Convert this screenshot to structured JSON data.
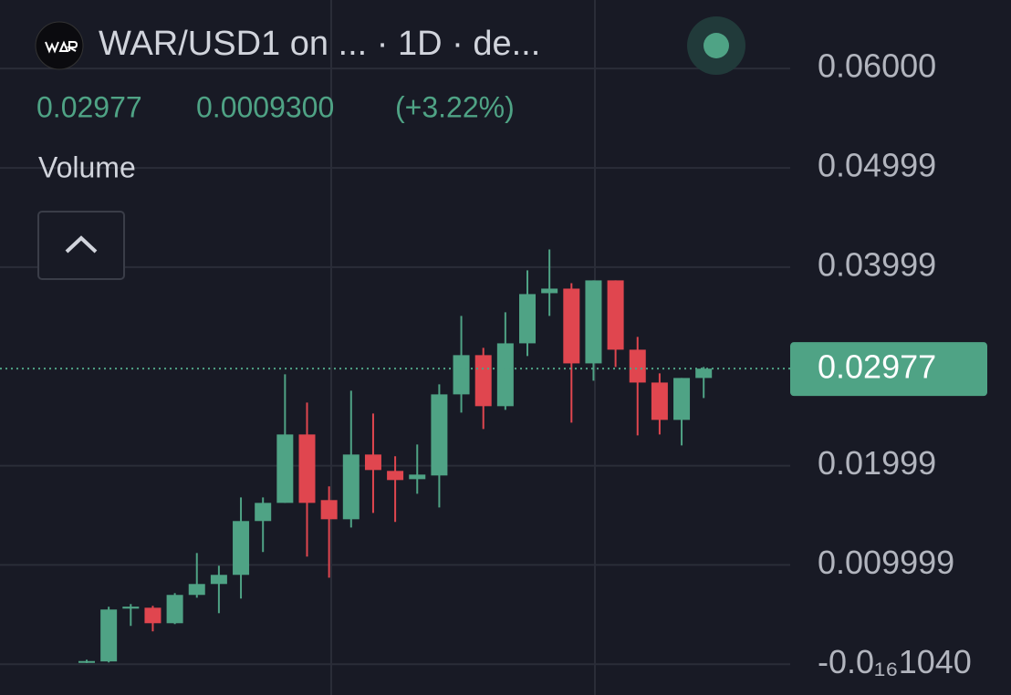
{
  "chart_data": {
    "type": "candlestick",
    "title": "WAR/USD1 on ... · 1D · de...",
    "last_price": 0.02977,
    "change": "0.0009300",
    "change_pct": "(+3.22%)",
    "indicator": "Volume",
    "up_color": "#4fa385",
    "down_color": "#e0464f",
    "categories": [
      null,
      null,
      null,
      null,
      null,
      null,
      null,
      null,
      null,
      null,
      null,
      null,
      null,
      null,
      null,
      null,
      null,
      null,
      null,
      null,
      null,
      null,
      null,
      null,
      null,
      null,
      null,
      null,
      null
    ],
    "open": [
      0.0003,
      0.00028,
      0.0056,
      0.00569,
      0.00413,
      0.00698,
      0.00808,
      0.009,
      0.01442,
      0.01625,
      0.02314,
      0.01653,
      0.0146,
      0.02112,
      0.01947,
      0.01864,
      0.01901,
      0.02718,
      0.03113,
      0.02599,
      0.03232,
      0.03737,
      0.03783,
      0.0303,
      0.03866,
      0.03168,
      0.02837,
      0.02461,
      0.02883
    ],
    "high": [
      0.00045,
      0.00579,
      0.00606,
      0.00588,
      0.00716,
      0.0112,
      0.00992,
      0.0168,
      0.0168,
      0.0292,
      0.02635,
      0.01791,
      0.02755,
      0.02525,
      0.02094,
      0.02213,
      0.02819,
      0.03508,
      0.03186,
      0.03545,
      0.03967,
      0.04178,
      0.03838,
      0.03866,
      0.03866,
      0.03297,
      0.02929,
      0.02883,
      0.02994
    ],
    "low": [
      0.00012,
      0.00018,
      0.00386,
      0.00331,
      0.00404,
      0.0067,
      0.00514,
      0.00661,
      0.0113,
      0.01625,
      0.01084,
      0.00872,
      0.01377,
      0.01524,
      0.01433,
      0.01717,
      0.01579,
      0.02534,
      0.02369,
      0.02562,
      0.03104,
      0.03508,
      0.02433,
      0.02856,
      0.02994,
      0.02305,
      0.02314,
      0.02204,
      0.02681
    ],
    "close": [
      0.00032,
      0.00551,
      0.0058,
      0.00413,
      0.00698,
      0.00808,
      0.009,
      0.01442,
      0.01625,
      0.02314,
      0.01625,
      0.0146,
      0.02112,
      0.01956,
      0.01855,
      0.0191,
      0.02718,
      0.03113,
      0.02599,
      0.03232,
      0.03728,
      0.03783,
      0.0303,
      0.03866,
      0.03168,
      0.02837,
      0.02461,
      0.02883,
      0.02977
    ],
    "ylim": [
      -0.0031,
      0.0669
    ],
    "yticks": [
      {
        "value": 0.06,
        "label": "0.06000"
      },
      {
        "value": 0.04999,
        "label": "0.04999"
      },
      {
        "value": 0.03999,
        "label": "0.03999"
      },
      {
        "value": 0.01999,
        "label": "0.01999"
      },
      {
        "value": 0.009999,
        "label": "0.009999"
      },
      {
        "value": -1.04e-20,
        "label": "-0.0₁₆1040"
      }
    ],
    "grid": true
  }
}
